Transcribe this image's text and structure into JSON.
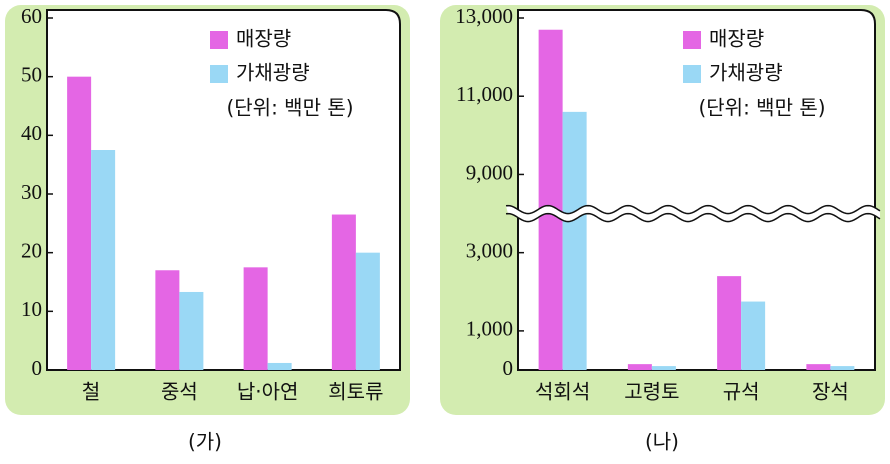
{
  "chart_data": [
    {
      "type": "bar",
      "title": "(가)",
      "annotation": "(단위: 백만 톤)",
      "categories": [
        "철",
        "중석",
        "납·아연",
        "희토류"
      ],
      "series": [
        {
          "name": "매장량",
          "color": "#e466e4",
          "values": [
            50,
            17,
            17.5,
            26.5
          ]
        },
        {
          "name": "가채광량",
          "color": "#9ad8f5",
          "values": [
            37.5,
            13.3,
            1.2,
            20
          ]
        }
      ],
      "ylim": [
        0,
        60
      ],
      "yticks": [
        0,
        10,
        20,
        30,
        40,
        50,
        60
      ]
    },
    {
      "type": "bar",
      "title": "(나)",
      "annotation": "(단위: 백만 톤)",
      "categories": [
        "석회석",
        "고령토",
        "규석",
        "장석"
      ],
      "series": [
        {
          "name": "매장량",
          "color": "#e466e4",
          "values": [
            12700,
            150,
            2400,
            150
          ]
        },
        {
          "name": "가채광량",
          "color": "#9ad8f5",
          "values": [
            10600,
            100,
            1750,
            100
          ]
        }
      ],
      "ylim": [
        0,
        13000
      ],
      "y_break": [
        4000,
        8000
      ],
      "yticks": [
        0,
        {
          "value": 1000,
          "label": "1,000"
        },
        {
          "value": 3000,
          "label": "3,000"
        },
        {
          "value": 9000,
          "label": "9,000"
        },
        {
          "value": 11000,
          "label": "11,000"
        },
        {
          "value": 13000,
          "label": "13,000"
        }
      ]
    }
  ]
}
